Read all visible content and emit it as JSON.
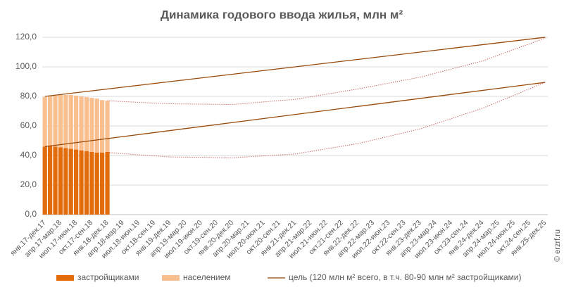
{
  "chart_data": {
    "type": "bar",
    "title": "Динамика годового ввода жилья, млн м²",
    "categories": [
      "янв.17-дек.17",
      null,
      null,
      "апр.17-мар.18",
      null,
      null,
      "июл.17-июн.18",
      null,
      null,
      "окт.17-сен.18",
      null,
      null,
      "янв.18-дек.18",
      null,
      null,
      "апр.18-мар.19",
      null,
      null,
      "июл.18-июн.19",
      null,
      null,
      "окт.18-сен.19",
      null,
      null,
      "янв.19-дек.19",
      null,
      null,
      "апр.19-мар.20",
      null,
      null,
      "июл.19-июн.20",
      null,
      null,
      "окт.19-сен.20",
      null,
      null,
      "янв.20-дек.20",
      null,
      null,
      "апр.20-мар.21",
      null,
      null,
      "июл.20-июн.21",
      null,
      null,
      "окт.20-сен.21",
      null,
      null,
      "янв.21-дек.21",
      null,
      null,
      "апр.21-мар.22",
      null,
      null,
      "июл.21-июн.22",
      null,
      null,
      "окт.21-сен.22",
      null,
      null,
      "янв.22-дек.22",
      null,
      null,
      "апр.22-мар.23",
      null,
      null,
      "июл.22-июн.23",
      null,
      null,
      "окт.22-сен.23",
      null,
      null,
      "янв.23-дек.23",
      null,
      null,
      "апр.23-мар.24",
      null,
      null,
      "июл.23-июн.24",
      null,
      null,
      "окт.23-сен.24",
      null,
      null,
      "янв.24-дек.24",
      null,
      null,
      "апр.24-мар.25",
      null,
      null,
      "июл.24-июн.25",
      null,
      null,
      "окт.24-сен.25",
      null,
      null,
      "янв.25-дек.25"
    ],
    "series": [
      {
        "name": "застройщиками",
        "color": "#e26b0a",
        "values": [
          46,
          46.5,
          46,
          45.5,
          45,
          44.5,
          44,
          43.5,
          43,
          42.5,
          42,
          42,
          42.5,
          null,
          null,
          null,
          null,
          null,
          null,
          null,
          null,
          null,
          null,
          null,
          null,
          null,
          null,
          null,
          null,
          null,
          null,
          null,
          null,
          null,
          null,
          null,
          null,
          null,
          null,
          null,
          null,
          null,
          null,
          null,
          null,
          null,
          null,
          null,
          null,
          null,
          null,
          null,
          null,
          null,
          null,
          null,
          null,
          null,
          null,
          null,
          null,
          null,
          null,
          null,
          null,
          null,
          null,
          null,
          null,
          null,
          null,
          null,
          null,
          null,
          null,
          null,
          null,
          null,
          null,
          null,
          null,
          null,
          null,
          null,
          null,
          null,
          null,
          null,
          null,
          null,
          null,
          null,
          null,
          null,
          null,
          null,
          null
        ]
      },
      {
        "name": "населением",
        "color": "#fabf8f",
        "values": [
          33.5,
          33.5,
          34.5,
          35.5,
          36,
          36.5,
          36.5,
          36.5,
          36.5,
          36.5,
          36.5,
          35.5,
          34.5,
          null,
          null,
          null,
          null,
          null,
          null,
          null,
          null,
          null,
          null,
          null,
          null,
          null,
          null,
          null,
          null,
          null,
          null,
          null,
          null,
          null,
          null,
          null,
          null,
          null,
          null,
          null,
          null,
          null,
          null,
          null,
          null,
          null,
          null,
          null,
          null,
          null,
          null,
          null,
          null,
          null,
          null,
          null,
          null,
          null,
          null,
          null,
          null,
          null,
          null,
          null,
          null,
          null,
          null,
          null,
          null,
          null,
          null,
          null,
          null,
          null,
          null,
          null,
          null,
          null,
          null,
          null,
          null,
          null,
          null,
          null,
          null,
          null,
          null,
          null,
          null,
          null,
          null,
          null,
          null,
          null,
          null,
          null,
          null
        ]
      }
    ],
    "lines": [
      {
        "name": "цель (120 млн м² всего, в т.ч. 80-90 млн м² застройщиками)",
        "color": "#984807",
        "style": "solid",
        "segments": [
          {
            "x": [
              "янв.17-дек.17",
              "янв.25-дек.25"
            ],
            "values": [
              80,
              120
            ]
          },
          {
            "x": [
              "янв.17-дек.17",
              "янв.25-дек.25"
            ],
            "values": [
              46,
              89.5
            ]
          }
        ]
      },
      {
        "color": "#c0504d",
        "style": "dotted",
        "x": [
          "янв.18-дек.18",
          "янв.19-дек.19",
          "янв.20-дек.20",
          "янв.21-дек.21",
          "янв.22-дек.22",
          "янв.23-дек.23",
          "янв.24-дек.24",
          "янв.25-дек.25"
        ],
        "values": [
          77,
          75,
          74.5,
          78,
          85,
          93,
          104,
          119.5
        ]
      },
      {
        "color": "#c0504d",
        "style": "dotted",
        "x": [
          "янв.18-дек.18",
          "янв.19-дек.19",
          "янв.20-дек.20",
          "янв.21-дек.21",
          "янв.22-дек.22",
          "янв.23-дек.23",
          "янв.24-дек.24",
          "янв.25-дек.25"
        ],
        "values": [
          42,
          39,
          38.5,
          41,
          48,
          58,
          72,
          89.5
        ]
      }
    ],
    "ylim": [
      0,
      120
    ],
    "yticks": [
      {
        "value": 0,
        "label": "0,0"
      },
      {
        "value": 20,
        "label": "20,0"
      },
      {
        "value": 40,
        "label": "40,0"
      },
      {
        "value": 60,
        "label": "60,0"
      },
      {
        "value": 80,
        "label": "80,0"
      },
      {
        "value": 100,
        "label": "100,0"
      },
      {
        "value": 120,
        "label": "120,0"
      }
    ],
    "grid": true,
    "legend": "bottom",
    "watermark": "© erzrf.ru"
  }
}
